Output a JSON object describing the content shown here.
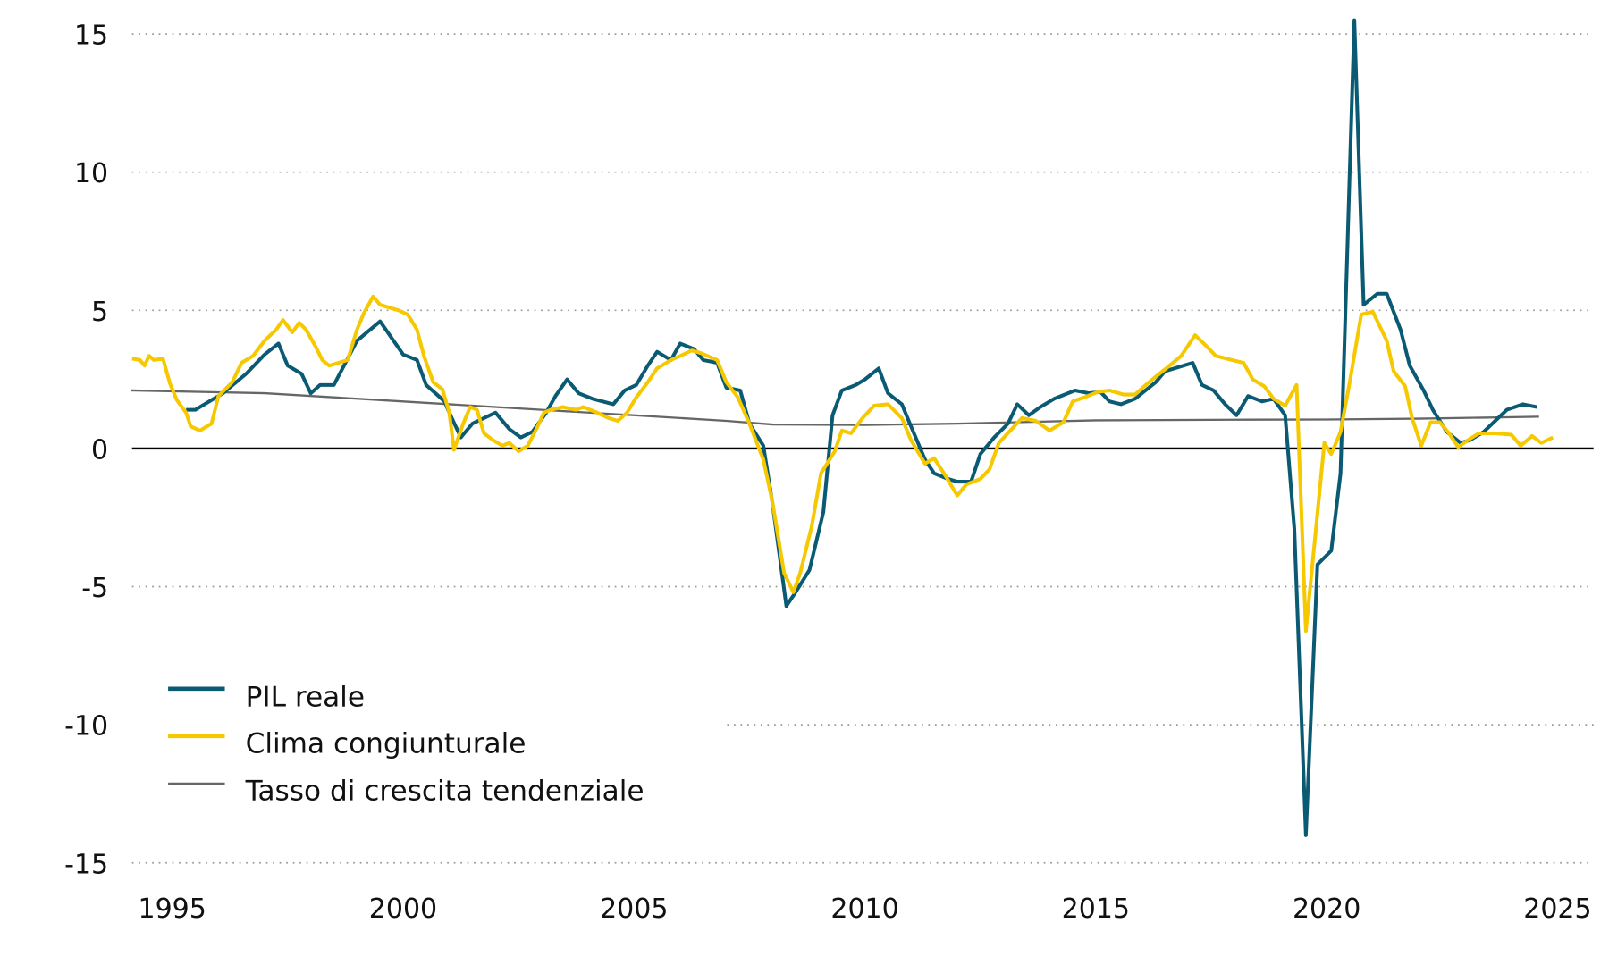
{
  "chart_data": {
    "type": "line",
    "title": "",
    "xlabel": "",
    "ylabel": "",
    "xlim": [
      1994.1,
      2025.8
    ],
    "ylim": [
      -15,
      15
    ],
    "x_ticks": [
      "1995",
      "2000",
      "2005",
      "2010",
      "2015",
      "2020",
      "2025"
    ],
    "y_ticks": [
      "15",
      "10",
      "5",
      "0",
      "-5",
      "-10",
      "-15"
    ],
    "grid": "horizontal dotted",
    "legend_position": "bottom-left",
    "series": [
      {
        "name": "PIL reale",
        "color": "#0b5a73",
        "x": [
          1995.3,
          1995.5,
          1996.1,
          1996.6,
          1997.0,
          1997.3,
          1997.5,
          1997.8,
          1998.0,
          1998.2,
          1998.5,
          1999.0,
          1999.5,
          2000.0,
          2000.3,
          2000.5,
          2000.9,
          2001.0,
          2001.25,
          2001.5,
          2001.75,
          2002.0,
          2002.3,
          2002.55,
          2002.8,
          2003.1,
          2003.3,
          2003.55,
          2003.8,
          2004.1,
          2004.55,
          2004.8,
          2005.05,
          2005.3,
          2005.5,
          2005.8,
          2006.0,
          2006.3,
          2006.5,
          2006.8,
          2007.0,
          2007.3,
          2007.5,
          2007.8,
          2008.0,
          2008.3,
          2008.5,
          2008.8,
          2009.1,
          2009.3,
          2009.5,
          2009.8,
          2010.0,
          2010.3,
          2010.5,
          2010.8,
          2011.0,
          2011.3,
          2011.5,
          2011.8,
          2012.0,
          2012.3,
          2012.5,
          2012.8,
          2013.1,
          2013.3,
          2013.55,
          2013.8,
          2014.1,
          2014.55,
          2014.85,
          2015.1,
          2015.3,
          2015.55,
          2015.85,
          2016.3,
          2016.5,
          2017.1,
          2017.3,
          2017.55,
          2017.8,
          2018.05,
          2018.3,
          2018.6,
          2018.85,
          2019.1,
          2019.3,
          2019.55,
          2019.8,
          2020.1,
          2020.3,
          2020.6,
          2020.8,
          2021.1,
          2021.3,
          2021.6,
          2021.8,
          2022.1,
          2022.3,
          2022.6,
          2022.9,
          2023.1,
          2023.4,
          2023.65,
          2023.9,
          2024.25,
          2024.55
        ],
        "y": [
          1.4,
          1.4,
          2.0,
          2.7,
          3.4,
          3.8,
          3.0,
          2.7,
          2.0,
          2.3,
          2.3,
          3.9,
          4.6,
          3.4,
          3.2,
          2.3,
          1.7,
          1.3,
          0.4,
          0.9,
          1.1,
          1.3,
          0.7,
          0.4,
          0.6,
          1.3,
          1.9,
          2.5,
          2.0,
          1.8,
          1.6,
          2.1,
          2.3,
          3.0,
          3.5,
          3.2,
          3.8,
          3.6,
          3.2,
          3.1,
          2.2,
          2.1,
          0.9,
          0.1,
          -2.0,
          -5.7,
          -5.2,
          -4.4,
          -2.3,
          1.2,
          2.1,
          2.3,
          2.5,
          2.9,
          2.0,
          1.6,
          0.8,
          -0.4,
          -0.9,
          -1.1,
          -1.2,
          -1.2,
          -0.2,
          0.4,
          0.9,
          1.6,
          1.2,
          1.5,
          1.8,
          2.1,
          2.0,
          2.05,
          1.7,
          1.6,
          1.8,
          2.4,
          2.8,
          3.1,
          2.3,
          2.1,
          1.6,
          1.2,
          1.9,
          1.7,
          1.8,
          1.2,
          -2.9,
          -14.0,
          -4.2,
          -3.7,
          -0.9,
          15.5,
          5.2,
          5.6,
          5.6,
          4.3,
          3.0,
          2.1,
          1.4,
          0.6,
          0.2,
          0.3,
          0.6,
          1.0,
          1.4,
          1.6,
          1.5
        ]
      },
      {
        "name": "Clima congiunturale",
        "color": "#f5c800",
        "x": [
          1994.13,
          1994.3,
          1994.4,
          1994.5,
          1994.6,
          1994.8,
          1994.95,
          1995.1,
          1995.3,
          1995.4,
          1995.6,
          1995.85,
          1996.0,
          1996.3,
          1996.5,
          1996.75,
          1997.0,
          1997.25,
          1997.4,
          1997.6,
          1997.75,
          1997.9,
          1998.1,
          1998.25,
          1998.4,
          1998.6,
          1998.8,
          1999.0,
          1999.15,
          1999.35,
          1999.5,
          1999.7,
          1999.9,
          2000.1,
          2000.3,
          2000.45,
          2000.65,
          2000.85,
          2001.0,
          2001.1,
          2001.3,
          2001.45,
          2001.6,
          2001.75,
          2001.95,
          2002.15,
          2002.3,
          2002.5,
          2002.7,
          2002.9,
          2003.05,
          2003.2,
          2003.45,
          2003.75,
          2003.9,
          2004.2,
          2004.45,
          2004.65,
          2004.85,
          2005.05,
          2005.3,
          2005.5,
          2005.8,
          2006.0,
          2006.25,
          2006.45,
          2006.8,
          2007.0,
          2007.25,
          2007.5,
          2007.8,
          2008.0,
          2008.25,
          2008.45,
          2008.6,
          2008.85,
          2009.05,
          2009.35,
          2009.5,
          2009.7,
          2009.95,
          2010.2,
          2010.5,
          2010.8,
          2011.0,
          2011.3,
          2011.5,
          2011.75,
          2012.0,
          2012.2,
          2012.5,
          2012.7,
          2012.9,
          2013.15,
          2013.4,
          2013.7,
          2014.0,
          2014.3,
          2014.5,
          2014.75,
          2015.05,
          2015.3,
          2015.6,
          2015.85,
          2016.05,
          2016.3,
          2016.6,
          2016.85,
          2017.15,
          2017.4,
          2017.6,
          2017.95,
          2018.2,
          2018.4,
          2018.65,
          2018.85,
          2019.1,
          2019.35,
          2019.55,
          2019.75,
          2019.95,
          2020.1,
          2020.3,
          2020.5,
          2020.75,
          2021.0,
          2021.3,
          2021.45,
          2021.7,
          2021.85,
          2022.05,
          2022.25,
          2022.45,
          2022.65,
          2022.85,
          2023.1,
          2023.3,
          2023.65,
          2024.0,
          2024.2,
          2024.45,
          2024.65,
          2024.9
        ],
        "y": [
          3.25,
          3.2,
          3.0,
          3.35,
          3.2,
          3.25,
          2.35,
          1.75,
          1.3,
          0.8,
          0.65,
          0.9,
          1.9,
          2.4,
          3.1,
          3.35,
          3.9,
          4.3,
          4.65,
          4.2,
          4.55,
          4.3,
          3.7,
          3.2,
          3.0,
          3.1,
          3.2,
          4.3,
          4.9,
          5.5,
          5.2,
          5.1,
          5.0,
          4.85,
          4.3,
          3.35,
          2.4,
          2.15,
          1.3,
          -0.05,
          0.9,
          1.5,
          1.4,
          0.55,
          0.3,
          0.1,
          0.2,
          -0.1,
          0.1,
          0.75,
          1.3,
          1.4,
          1.5,
          1.4,
          1.5,
          1.3,
          1.1,
          1.0,
          1.3,
          1.85,
          2.4,
          2.9,
          3.2,
          3.35,
          3.55,
          3.45,
          3.2,
          2.4,
          1.85,
          0.9,
          -0.4,
          -1.95,
          -4.5,
          -5.2,
          -4.5,
          -2.8,
          -0.9,
          -0.1,
          0.65,
          0.55,
          1.1,
          1.55,
          1.6,
          1.1,
          0.3,
          -0.55,
          -0.35,
          -1.0,
          -1.7,
          -1.3,
          -1.1,
          -0.75,
          0.2,
          0.65,
          1.1,
          1.0,
          0.65,
          0.95,
          1.7,
          1.85,
          2.05,
          2.1,
          1.95,
          1.95,
          2.25,
          2.6,
          3.0,
          3.35,
          4.1,
          3.7,
          3.35,
          3.2,
          3.1,
          2.5,
          2.25,
          1.8,
          1.55,
          2.3,
          -6.6,
          -3.2,
          0.2,
          -0.2,
          0.6,
          2.4,
          4.85,
          4.95,
          3.9,
          2.8,
          2.25,
          1.1,
          0.1,
          0.95,
          0.95,
          0.55,
          0.05,
          0.35,
          0.55,
          0.55,
          0.5,
          0.1,
          0.45,
          0.2,
          0.4
        ]
      },
      {
        "name": "Tasso di crescita tendenziale",
        "color": "#666666",
        "x": [
          1994.1,
          1997,
          2000,
          2003,
          2005,
          2007,
          2008,
          2010,
          2012,
          2015,
          2018,
          2020,
          2022,
          2024.6
        ],
        "y": [
          2.1,
          2.0,
          1.7,
          1.4,
          1.2,
          1.0,
          0.87,
          0.85,
          0.9,
          1.02,
          1.04,
          1.05,
          1.08,
          1.15
        ]
      }
    ]
  }
}
